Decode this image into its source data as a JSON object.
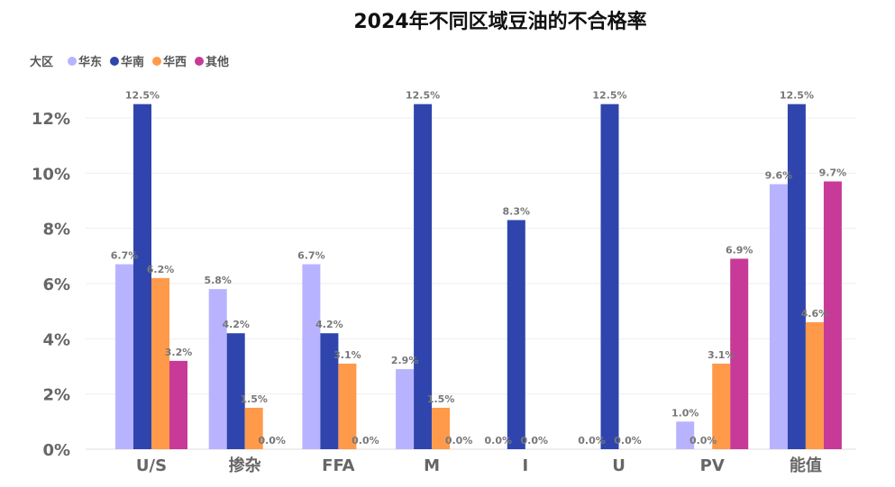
{
  "chart_data": {
    "type": "bar",
    "title": "2024年不同区域豆油的不合格率",
    "legend_title": "大区",
    "legend_position": "top-left",
    "categories": [
      "U/S",
      "掺杂",
      "FFA",
      "M",
      "I",
      "U",
      "PV",
      "能值"
    ],
    "series": [
      {
        "name": "华东",
        "color": "#b8b3ff",
        "values": [
          6.7,
          5.8,
          6.7,
          2.9,
          0.0,
          0.0,
          1.0,
          9.6
        ]
      },
      {
        "name": "华南",
        "color": "#2f45ad",
        "values": [
          12.5,
          4.2,
          4.2,
          12.5,
          8.3,
          12.5,
          0.0,
          12.5
        ]
      },
      {
        "name": "华西",
        "color": "#ff9a4a",
        "values": [
          6.2,
          1.5,
          3.1,
          1.5,
          0.0,
          0.0,
          3.1,
          4.6
        ]
      },
      {
        "name": "其他",
        "color": "#c83a97",
        "values": [
          3.2,
          0.0,
          0.0,
          0.0,
          null,
          null,
          6.9,
          9.7
        ]
      }
    ],
    "yticks": [
      "0%",
      "2%",
      "4%",
      "6%",
      "8%",
      "10%",
      "12%"
    ],
    "ylim": [
      0,
      12
    ],
    "grid": true,
    "xlabel": "",
    "ylabel": ""
  }
}
